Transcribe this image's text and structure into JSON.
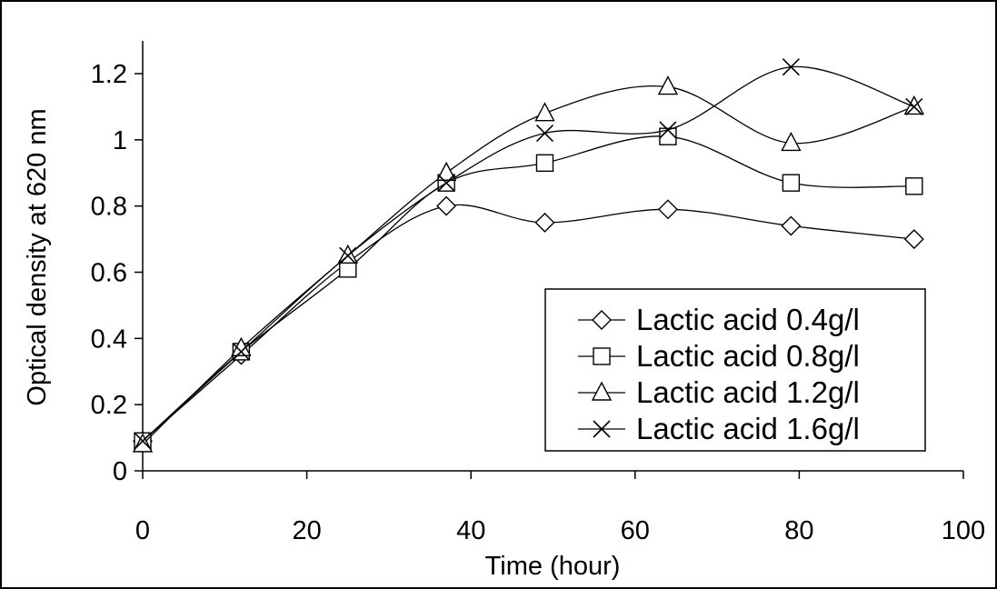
{
  "chart_data": {
    "type": "line",
    "title": "",
    "xlabel": "Time (hour)",
    "ylabel": "Optical density at 620 nm",
    "xlim": [
      0,
      100
    ],
    "ylim": [
      0,
      1.3
    ],
    "x_ticks": [
      0,
      20,
      40,
      60,
      80,
      100
    ],
    "y_ticks": [
      0,
      0.2,
      0.4,
      0.6,
      0.8,
      1,
      1.2
    ],
    "x_tick_labels": [
      "0",
      "20",
      "40",
      "60",
      "80",
      "100"
    ],
    "y_tick_labels": [
      "0",
      "0.2",
      "0.4",
      "0.6",
      "0.8",
      "1",
      "1.2"
    ],
    "grid": false,
    "legend_position": "bottom-right",
    "x": [
      0,
      12,
      25,
      37,
      49,
      64,
      79,
      94
    ],
    "series": [
      {
        "name": "Lactic acid 0.4g/l",
        "marker": "diamond",
        "values": [
          0.09,
          0.35,
          0.63,
          0.8,
          0.75,
          0.79,
          0.74,
          0.7
        ]
      },
      {
        "name": "Lactic acid 0.8g/l",
        "marker": "square",
        "values": [
          0.09,
          0.36,
          0.61,
          0.87,
          0.93,
          1.01,
          0.87,
          0.86
        ]
      },
      {
        "name": "Lactic acid 1.2g/l",
        "marker": "triangle",
        "values": [
          0.08,
          0.37,
          0.65,
          0.9,
          1.08,
          1.16,
          0.99,
          1.1
        ]
      },
      {
        "name": "Lactic acid 1.6g/l",
        "marker": "x",
        "values": [
          0.09,
          0.36,
          0.65,
          0.87,
          1.02,
          1.03,
          1.22,
          1.1
        ]
      }
    ]
  }
}
